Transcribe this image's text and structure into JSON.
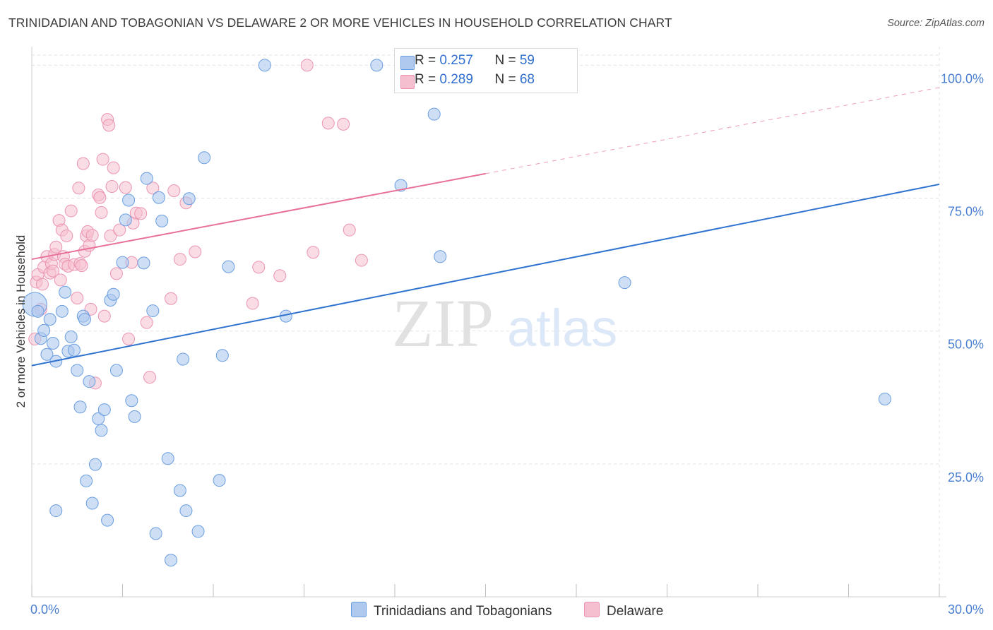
{
  "title": "TRINIDADIAN AND TOBAGONIAN VS DELAWARE 2 OR MORE VEHICLES IN HOUSEHOLD CORRELATION CHART",
  "source": "Source: ZipAtlas.com",
  "watermark": {
    "zip": "ZIP",
    "atlas": "atlas"
  },
  "legend": {
    "series1": {
      "r_label": "R = ",
      "r_value": "0.257",
      "n_label": "N = ",
      "n_value": "59"
    },
    "series2": {
      "r_label": "R = ",
      "r_value": "0.289",
      "n_label": "N = ",
      "n_value": "68"
    }
  },
  "bottom_legend": {
    "series1": "Trinidadians and Tobagonians",
    "series2": "Delaware"
  },
  "colors": {
    "blue_fill": "#aec8ee",
    "blue_stroke": "#6a9ee0",
    "blue_line": "#2f73d0",
    "pink_fill": "#f6bfd0",
    "pink_stroke": "#eb94b2",
    "pink_line": "#e8709a",
    "tick_text": "#4a7fd0",
    "grid": "#e3e3e3"
  },
  "chart_data": {
    "type": "scatter",
    "title": "TRINIDADIAN AND TOBAGONIAN VS DELAWARE 2 OR MORE VEHICLES IN HOUSEHOLD CORRELATION CHART",
    "xlabel": "",
    "ylabel": "2 or more Vehicles in Household",
    "xlim": [
      0,
      30
    ],
    "ylim": [
      0,
      103.5
    ],
    "x_tick_labels": [
      "0.0%",
      "30.0%"
    ],
    "y_ticks": [
      25,
      50,
      75,
      100
    ],
    "y_tick_labels": [
      "25.0%",
      "50.0%",
      "75.0%",
      "100.0%"
    ],
    "grid": true,
    "legend_position": "top-center",
    "series": [
      {
        "name": "Trinidadians and Tobagonians",
        "color": "#aec8ee",
        "points": [
          [
            0.1,
            55.0
          ],
          [
            0.2,
            53.7
          ],
          [
            0.3,
            48.6
          ],
          [
            0.4,
            50.1
          ],
          [
            0.5,
            45.6
          ],
          [
            0.6,
            52.2
          ],
          [
            0.7,
            47.7
          ],
          [
            0.8,
            44.3
          ],
          [
            0.8,
            16.2
          ],
          [
            1.0,
            53.7
          ],
          [
            1.1,
            57.3
          ],
          [
            1.2,
            46.2
          ],
          [
            1.3,
            48.9
          ],
          [
            1.4,
            46.4
          ],
          [
            1.5,
            42.6
          ],
          [
            1.6,
            35.7
          ],
          [
            1.7,
            52.8
          ],
          [
            1.75,
            52.2
          ],
          [
            1.8,
            21.8
          ],
          [
            1.9,
            40.5
          ],
          [
            2.0,
            17.6
          ],
          [
            2.1,
            24.9
          ],
          [
            2.2,
            33.5
          ],
          [
            2.3,
            31.3
          ],
          [
            2.4,
            35.2
          ],
          [
            2.5,
            14.4
          ],
          [
            2.6,
            55.8
          ],
          [
            2.7,
            56.9
          ],
          [
            2.8,
            42.6
          ],
          [
            3.0,
            62.9
          ],
          [
            3.1,
            70.9
          ],
          [
            3.2,
            74.6
          ],
          [
            3.3,
            36.9
          ],
          [
            3.4,
            33.9
          ],
          [
            3.7,
            62.8
          ],
          [
            3.8,
            78.7
          ],
          [
            4.0,
            53.8
          ],
          [
            4.1,
            11.9
          ],
          [
            4.2,
            75.1
          ],
          [
            4.3,
            70.7
          ],
          [
            4.5,
            26.0
          ],
          [
            4.6,
            6.9
          ],
          [
            4.9,
            20.0
          ],
          [
            5.0,
            44.7
          ],
          [
            5.1,
            16.2
          ],
          [
            5.2,
            74.9
          ],
          [
            5.5,
            12.3
          ],
          [
            5.7,
            82.6
          ],
          [
            6.2,
            21.9
          ],
          [
            6.3,
            45.4
          ],
          [
            6.5,
            62.1
          ],
          [
            7.7,
            100.0
          ],
          [
            8.4,
            52.8
          ],
          [
            11.4,
            100.0
          ],
          [
            12.2,
            77.4
          ],
          [
            13.3,
            90.8
          ],
          [
            13.5,
            64.0
          ],
          [
            19.6,
            59.1
          ],
          [
            28.2,
            37.2
          ]
        ],
        "trend": {
          "x": [
            0,
            30
          ],
          "y": [
            43.5,
            77.6
          ]
        }
      },
      {
        "name": "Delaware",
        "color": "#f6bfd0",
        "points": [
          [
            0.1,
            48.5
          ],
          [
            0.15,
            59.2
          ],
          [
            0.2,
            60.6
          ],
          [
            0.3,
            54.1
          ],
          [
            0.35,
            58.8
          ],
          [
            0.4,
            62.0
          ],
          [
            0.5,
            64.0
          ],
          [
            0.6,
            60.9
          ],
          [
            0.65,
            62.7
          ],
          [
            0.7,
            61.3
          ],
          [
            0.75,
            64.4
          ],
          [
            0.8,
            65.8
          ],
          [
            0.9,
            70.8
          ],
          [
            0.95,
            59.6
          ],
          [
            1.0,
            69.0
          ],
          [
            1.05,
            64.0
          ],
          [
            1.1,
            62.6
          ],
          [
            1.15,
            67.9
          ],
          [
            1.2,
            62.2
          ],
          [
            1.3,
            72.6
          ],
          [
            1.4,
            62.5
          ],
          [
            1.5,
            56.2
          ],
          [
            1.55,
            76.9
          ],
          [
            1.6,
            62.7
          ],
          [
            1.65,
            62.3
          ],
          [
            1.7,
            81.5
          ],
          [
            1.75,
            65.0
          ],
          [
            1.8,
            67.9
          ],
          [
            1.85,
            68.7
          ],
          [
            1.9,
            66.1
          ],
          [
            1.95,
            54.1
          ],
          [
            2.0,
            68.0
          ],
          [
            2.1,
            40.2
          ],
          [
            2.2,
            75.6
          ],
          [
            2.25,
            75.1
          ],
          [
            2.3,
            72.3
          ],
          [
            2.35,
            82.3
          ],
          [
            2.4,
            52.8
          ],
          [
            2.5,
            89.8
          ],
          [
            2.55,
            88.7
          ],
          [
            2.6,
            67.9
          ],
          [
            2.65,
            77.2
          ],
          [
            2.7,
            80.7
          ],
          [
            2.8,
            60.8
          ],
          [
            2.9,
            69.0
          ],
          [
            3.1,
            77.0
          ],
          [
            3.2,
            48.5
          ],
          [
            3.3,
            62.9
          ],
          [
            3.35,
            70.3
          ],
          [
            3.45,
            72.2
          ],
          [
            3.6,
            72.1
          ],
          [
            3.8,
            51.6
          ],
          [
            3.9,
            41.3
          ],
          [
            4.0,
            76.9
          ],
          [
            4.6,
            56.1
          ],
          [
            4.7,
            76.4
          ],
          [
            4.9,
            63.5
          ],
          [
            5.1,
            74.1
          ],
          [
            5.4,
            64.9
          ],
          [
            7.3,
            55.2
          ],
          [
            7.5,
            62.0
          ],
          [
            8.2,
            60.4
          ],
          [
            9.1,
            100.0
          ],
          [
            9.3,
            64.8
          ],
          [
            9.8,
            89.1
          ],
          [
            10.3,
            88.9
          ],
          [
            10.5,
            69.0
          ],
          [
            10.9,
            63.3
          ]
        ],
        "trend": {
          "x": [
            0,
            15
          ],
          "y": [
            63.5,
            79.6
          ]
        },
        "trend_dashed": {
          "x": [
            15,
            30
          ],
          "y": [
            79.6,
            95.8
          ]
        }
      }
    ]
  }
}
